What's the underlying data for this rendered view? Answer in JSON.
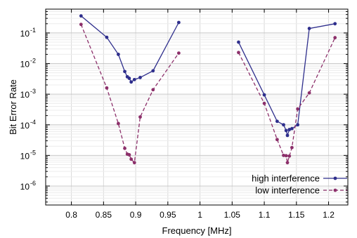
{
  "chart_data": {
    "type": "line",
    "xlabel": "Frequency [MHz]",
    "ylabel": "Bit Error Rate",
    "x_range": [
      0.76,
      1.23
    ],
    "y_range": [
      2.4e-07,
      0.6
    ],
    "y_scale": "log",
    "grid": true,
    "legend_position": "bottom-right",
    "x_ticks": [
      0.8,
      0.85,
      0.9,
      0.95,
      1.0,
      1.05,
      1.1,
      1.15,
      1.2
    ],
    "x_tick_labels": [
      "0.8",
      "0.85",
      "0.9",
      "0.95",
      "1",
      "1.05",
      "1.1",
      "1.15",
      "1.2"
    ],
    "y_ticks": [
      {
        "base": "10",
        "exp": "-1",
        "value": 0.1
      },
      {
        "base": "10",
        "exp": "-2",
        "value": 0.01
      },
      {
        "base": "10",
        "exp": "-3",
        "value": 0.001
      },
      {
        "base": "10",
        "exp": "-4",
        "value": 0.0001
      },
      {
        "base": "10",
        "exp": "-5",
        "value": 1e-05
      },
      {
        "base": "10",
        "exp": "-6",
        "value": 1e-06
      }
    ],
    "series": [
      {
        "name": "high interference",
        "color": "#2e2e8c",
        "dash": "solid",
        "segments": [
          [
            [
              0.815,
              0.36
            ],
            [
              0.855,
              0.072
            ],
            [
              0.873,
              0.02
            ],
            [
              0.883,
              0.0055
            ],
            [
              0.887,
              0.0037
            ],
            [
              0.89,
              0.0033
            ],
            [
              0.893,
              0.0025
            ],
            [
              0.898,
              0.003
            ],
            [
              0.907,
              0.0035
            ],
            [
              0.927,
              0.0058
            ],
            [
              0.967,
              0.22
            ]
          ],
          [
            [
              1.06,
              0.05
            ],
            [
              1.1,
              0.00095
            ],
            [
              1.12,
              0.00013
            ],
            [
              1.13,
              0.0001
            ],
            [
              1.134,
              6.5e-05
            ],
            [
              1.136,
              4.5e-05
            ],
            [
              1.139,
              7e-05
            ],
            [
              1.143,
              7.5e-05
            ],
            [
              1.152,
              0.0001
            ],
            [
              1.17,
              0.14
            ],
            [
              1.21,
              0.2
            ]
          ]
        ]
      },
      {
        "name": "low interference",
        "color": "#8c2f6a",
        "dash": "dashed",
        "segments": [
          [
            [
              0.815,
              0.19
            ],
            [
              0.855,
              0.0016
            ],
            [
              0.873,
              0.00011
            ],
            [
              0.883,
              1.7e-05
            ],
            [
              0.887,
              1.1e-05
            ],
            [
              0.89,
              1.05e-05
            ],
            [
              0.893,
              7.5e-06
            ],
            [
              0.898,
              5.8e-06
            ],
            [
              0.907,
              0.00018
            ],
            [
              0.927,
              0.0014
            ],
            [
              0.967,
              0.022
            ]
          ],
          [
            [
              1.06,
              0.023
            ],
            [
              1.1,
              0.0005
            ],
            [
              1.12,
              3.3e-05
            ],
            [
              1.13,
              1e-05
            ],
            [
              1.134,
              9.8e-06
            ],
            [
              1.136,
              5.8e-06
            ],
            [
              1.139,
              9.5e-06
            ],
            [
              1.143,
              1.8e-05
            ],
            [
              1.152,
              0.00033
            ],
            [
              1.17,
              0.0011
            ],
            [
              1.21,
              0.07
            ]
          ]
        ]
      }
    ]
  }
}
